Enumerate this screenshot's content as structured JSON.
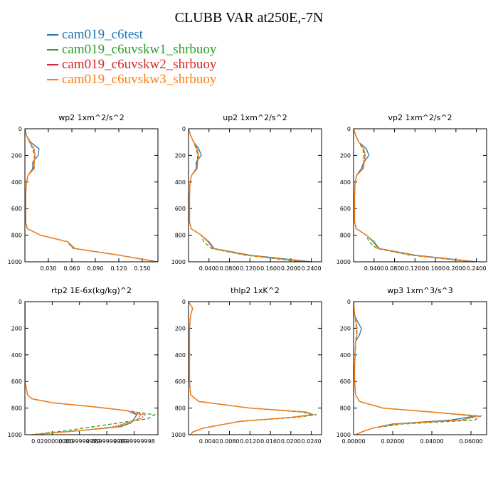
{
  "title": "CLUBB VAR at250E,-7N",
  "legend": [
    {
      "name": "cam019_c6test",
      "color": "#1f77b4"
    },
    {
      "name": "cam019_c6uvskw1_shrbuoy",
      "color": "#2ca02c"
    },
    {
      "name": "cam019_c6uvskw2_shrbuoy",
      "color": "#d62728"
    },
    {
      "name": "cam019_c6uvskw3_shrbuoy",
      "color": "#ff7f0e"
    }
  ],
  "chart_data": [
    {
      "type": "line",
      "title": "wp2  1xm^2/s^2",
      "xlim": [
        0,
        0.17
      ],
      "ylim": [
        1000,
        0
      ],
      "xticks": [
        "0.030",
        "0.060",
        "0.090",
        "0.120",
        "0.150"
      ],
      "xtick_values": [
        0.03,
        0.06,
        0.09,
        0.12,
        0.15
      ],
      "yticks": [
        "0",
        "200",
        "400",
        "600",
        "800",
        "1000"
      ],
      "y": [
        0,
        50,
        100,
        150,
        200,
        250,
        300,
        350,
        400,
        500,
        600,
        700,
        750,
        800,
        850,
        880,
        900,
        950,
        1000
      ],
      "series": [
        {
          "values": [
            0.0,
            0.002,
            0.007,
            0.018,
            0.017,
            0.01,
            0.01,
            0.004,
            0.002,
            0.001,
            0.001,
            0.001,
            0.003,
            0.02,
            0.055,
            0.06,
            0.064,
            0.12,
            0.17
          ]
        },
        {
          "values": [
            0.0,
            0.002,
            0.006,
            0.01,
            0.012,
            0.012,
            0.011,
            0.004,
            0.002,
            0.001,
            0.001,
            0.001,
            0.003,
            0.02,
            0.055,
            0.058,
            0.062,
            0.12,
            0.168
          ]
        },
        {
          "values": [
            0.0,
            0.002,
            0.006,
            0.012,
            0.013,
            0.011,
            0.011,
            0.004,
            0.002,
            0.001,
            0.001,
            0.001,
            0.003,
            0.02,
            0.055,
            0.059,
            0.063,
            0.12,
            0.168
          ]
        },
        {
          "values": [
            0.0,
            0.002,
            0.006,
            0.011,
            0.013,
            0.012,
            0.012,
            0.004,
            0.002,
            0.001,
            0.001,
            0.001,
            0.003,
            0.02,
            0.055,
            0.059,
            0.063,
            0.12,
            0.168
          ]
        }
      ]
    },
    {
      "type": "line",
      "title": "up2  1xm^2/s^2",
      "xlim": [
        0,
        0.26
      ],
      "ylim": [
        1000,
        0
      ],
      "xticks": [
        "0.0400",
        "0.0800",
        "0.1200",
        "0.1600",
        "0.2000",
        "0.2400"
      ],
      "xtick_values": [
        0.04,
        0.08,
        0.12,
        0.16,
        0.2,
        0.24
      ],
      "yticks": [
        "0",
        "200",
        "400",
        "600",
        "800",
        "1000"
      ],
      "y": [
        0,
        50,
        100,
        150,
        200,
        250,
        300,
        350,
        400,
        500,
        600,
        700,
        750,
        800,
        850,
        900,
        950,
        1000
      ],
      "series": [
        {
          "values": [
            0.0,
            0.004,
            0.01,
            0.02,
            0.025,
            0.015,
            0.015,
            0.006,
            0.003,
            0.002,
            0.002,
            0.002,
            0.005,
            0.025,
            0.04,
            0.05,
            0.12,
            0.24
          ]
        },
        {
          "values": [
            0.0,
            0.004,
            0.01,
            0.015,
            0.018,
            0.017,
            0.016,
            0.006,
            0.003,
            0.002,
            0.002,
            0.002,
            0.005,
            0.025,
            0.03,
            0.045,
            0.11,
            0.22
          ]
        },
        {
          "values": [
            0.0,
            0.004,
            0.01,
            0.016,
            0.019,
            0.017,
            0.016,
            0.006,
            0.003,
            0.002,
            0.002,
            0.002,
            0.005,
            0.025,
            0.038,
            0.048,
            0.115,
            0.23
          ]
        },
        {
          "values": [
            0.0,
            0.004,
            0.01,
            0.017,
            0.02,
            0.018,
            0.017,
            0.006,
            0.003,
            0.002,
            0.002,
            0.002,
            0.005,
            0.025,
            0.038,
            0.048,
            0.115,
            0.23
          ]
        }
      ]
    },
    {
      "type": "line",
      "title": "vp2  1xm^2/s^2",
      "xlim": [
        0,
        0.26
      ],
      "ylim": [
        1000,
        0
      ],
      "xticks": [
        "0.0400",
        "0.0800",
        "0.1200",
        "0.1600",
        "0.2000",
        "0.2400"
      ],
      "xtick_values": [
        0.04,
        0.08,
        0.12,
        0.16,
        0.2,
        0.24
      ],
      "yticks": [
        "0",
        "200",
        "400",
        "600",
        "800",
        "1000"
      ],
      "y": [
        0,
        50,
        100,
        150,
        200,
        250,
        300,
        350,
        400,
        500,
        600,
        700,
        750,
        800,
        850,
        900,
        950,
        1000
      ],
      "series": [
        {
          "values": [
            0.0,
            0.004,
            0.01,
            0.025,
            0.03,
            0.02,
            0.015,
            0.006,
            0.003,
            0.002,
            0.002,
            0.002,
            0.005,
            0.025,
            0.04,
            0.05,
            0.12,
            0.24
          ]
        },
        {
          "values": [
            0.0,
            0.004,
            0.01,
            0.018,
            0.02,
            0.02,
            0.018,
            0.006,
            0.003,
            0.002,
            0.002,
            0.002,
            0.005,
            0.025,
            0.03,
            0.045,
            0.11,
            0.23
          ]
        },
        {
          "values": [
            0.0,
            0.004,
            0.01,
            0.02,
            0.022,
            0.02,
            0.018,
            0.006,
            0.003,
            0.002,
            0.002,
            0.002,
            0.005,
            0.025,
            0.038,
            0.048,
            0.115,
            0.235
          ]
        },
        {
          "values": [
            0.0,
            0.004,
            0.01,
            0.02,
            0.023,
            0.021,
            0.019,
            0.006,
            0.003,
            0.002,
            0.002,
            0.002,
            0.005,
            0.025,
            0.038,
            0.048,
            0.115,
            0.235
          ]
        }
      ]
    },
    {
      "type": "line",
      "title": "rtp2  1E-6x(kg/kg)^2",
      "xlim": [
        0,
        9.75e-05
      ],
      "ylim": [
        1000,
        0
      ],
      "xticks": [
        "0.0200000000",
        "0.0399999999",
        "0.0599999999",
        "0.0799999998"
      ],
      "xtick_values": [
        2e-05,
        4e-05,
        6e-05,
        8e-05
      ],
      "yticks": [
        "0",
        "200",
        "400",
        "600",
        "800",
        "1000"
      ],
      "y": [
        0,
        200,
        400,
        600,
        650,
        700,
        730,
        760,
        790,
        820,
        850,
        880,
        910,
        940,
        970,
        1000
      ],
      "series": [
        {
          "values": [
            0.0,
            0.0,
            0.0,
            0.0,
            1e-06,
            2e-06,
            5e-06,
            2e-05,
            5e-05,
            7.5e-05,
            8.2e-05,
            8e-05,
            7.8e-05,
            7e-05,
            4e-05,
            5e-06
          ]
        },
        {
          "values": [
            0.0,
            0.0,
            0.0,
            0.0,
            1e-06,
            2e-06,
            5e-06,
            2e-05,
            5e-05,
            7.5e-05,
            9.5e-05,
            9e-05,
            7e-05,
            5e-05,
            3e-05,
            5e-06
          ]
        },
        {
          "values": [
            0.0,
            0.0,
            0.0,
            0.0,
            1e-06,
            2e-06,
            5e-06,
            2e-05,
            5e-05,
            7.5e-05,
            8.8e-05,
            8.5e-05,
            7.5e-05,
            6.5e-05,
            4e-05,
            5e-06
          ]
        },
        {
          "values": [
            0.0,
            0.0,
            0.0,
            0.0,
            1e-06,
            2e-06,
            5e-06,
            2e-05,
            5e-05,
            7.5e-05,
            8.5e-05,
            8.3e-05,
            7.7e-05,
            6.8e-05,
            4e-05,
            5e-06
          ]
        }
      ]
    },
    {
      "type": "line",
      "title": "thlp2  1xK^2",
      "xlim": [
        0,
        0.026
      ],
      "ylim": [
        1000,
        0
      ],
      "xticks": [
        "0.0040",
        "0.0080",
        "0.0120",
        "0.0160",
        "0.0200",
        "0.0240"
      ],
      "xtick_values": [
        0.004,
        0.008,
        0.012,
        0.016,
        0.02,
        0.024
      ],
      "yticks": [
        "0",
        "200",
        "400",
        "600",
        "800",
        "1000"
      ],
      "y": [
        0,
        50,
        100,
        150,
        200,
        300,
        400,
        500,
        600,
        700,
        750,
        800,
        830,
        850,
        870,
        900,
        950,
        980,
        1000
      ],
      "series": [
        {
          "values": [
            0.0,
            0.0008,
            0.0004,
            0.0003,
            0.0002,
            0.0002,
            0.0002,
            0.0002,
            0.0002,
            0.0004,
            0.002,
            0.012,
            0.023,
            0.024,
            0.02,
            0.01,
            0.003,
            0.0008,
            0.0004
          ]
        },
        {
          "values": [
            0.0,
            0.0008,
            0.0004,
            0.0003,
            0.0002,
            0.0002,
            0.0002,
            0.0002,
            0.0002,
            0.0004,
            0.002,
            0.012,
            0.022,
            0.025,
            0.021,
            0.01,
            0.003,
            0.0008,
            0.0004
          ]
        },
        {
          "values": [
            0.0,
            0.0008,
            0.0004,
            0.0003,
            0.0002,
            0.0002,
            0.0002,
            0.0002,
            0.0002,
            0.0004,
            0.002,
            0.012,
            0.023,
            0.0245,
            0.02,
            0.01,
            0.003,
            0.0008,
            0.0004
          ]
        },
        {
          "values": [
            0.0,
            0.0008,
            0.0004,
            0.0003,
            0.0002,
            0.0002,
            0.0002,
            0.0002,
            0.0002,
            0.0004,
            0.002,
            0.012,
            0.023,
            0.0245,
            0.02,
            0.01,
            0.003,
            0.0008,
            0.0004
          ]
        }
      ]
    },
    {
      "type": "line",
      "title": "wp3  1xm^3/s^3",
      "xlim": [
        0,
        0.068
      ],
      "ylim": [
        1000,
        0
      ],
      "xticks": [
        "0.00000",
        "0.02000",
        "0.04000",
        "0.06000"
      ],
      "xtick_values": [
        0,
        0.02,
        0.04,
        0.06
      ],
      "yticks": [
        "0",
        "200",
        "400",
        "600",
        "800",
        "1000"
      ],
      "y": [
        0,
        100,
        150,
        200,
        250,
        300,
        400,
        500,
        600,
        700,
        750,
        800,
        830,
        860,
        890,
        920,
        950,
        980,
        1000
      ],
      "series": [
        {
          "values": [
            0.0,
            0.0005,
            0.002,
            0.004,
            0.003,
            0.001,
            0.0008,
            0.0005,
            0.0005,
            0.001,
            0.003,
            0.015,
            0.04,
            0.062,
            0.05,
            0.02,
            0.01,
            0.004,
            0.001
          ]
        },
        {
          "values": [
            0.0,
            0.0005,
            0.001,
            0.0015,
            0.0015,
            0.001,
            0.0008,
            0.0005,
            0.0005,
            0.001,
            0.003,
            0.015,
            0.04,
            0.065,
            0.062,
            0.025,
            0.01,
            0.004,
            0.001
          ]
        },
        {
          "values": [
            0.0,
            0.0005,
            0.0012,
            0.0018,
            0.0017,
            0.001,
            0.0008,
            0.0005,
            0.0005,
            0.001,
            0.003,
            0.015,
            0.04,
            0.064,
            0.056,
            0.022,
            0.01,
            0.004,
            0.001
          ]
        },
        {
          "values": [
            0.0,
            0.0005,
            0.0012,
            0.0018,
            0.0017,
            0.001,
            0.0008,
            0.0005,
            0.0005,
            0.001,
            0.003,
            0.015,
            0.04,
            0.063,
            0.055,
            0.022,
            0.01,
            0.004,
            0.001
          ]
        }
      ]
    }
  ]
}
